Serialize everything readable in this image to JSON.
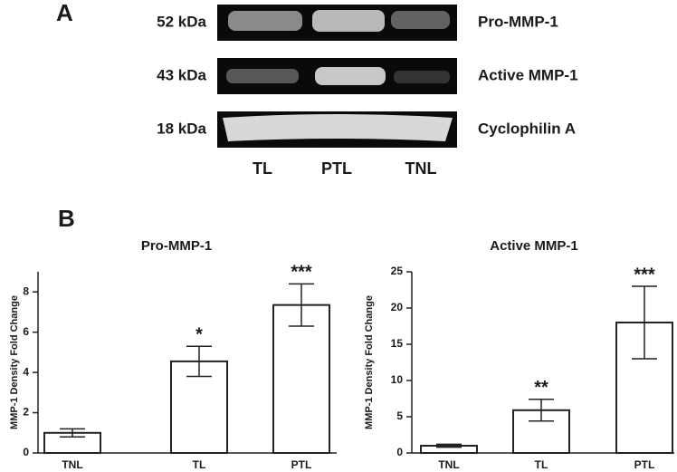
{
  "panel_a": {
    "label": "A",
    "rows": [
      {
        "size": "52 kDa",
        "protein": "Pro-MMP-1"
      },
      {
        "size": "43 kDa",
        "protein": "Active MMP-1"
      },
      {
        "size": "18 kDa",
        "protein": "Cyclophilin A"
      }
    ],
    "lanes": [
      "TL",
      "PTL",
      "TNL"
    ]
  },
  "panel_b": {
    "label": "B"
  },
  "chart_data": [
    {
      "type": "bar",
      "title": "Pro-MMP-1",
      "ylabel": "MMP-1 Density Fold Change",
      "categories": [
        "TNL",
        "TL",
        "PTL"
      ],
      "values": [
        1.0,
        4.55,
        7.35
      ],
      "errors": [
        0.2,
        0.75,
        1.05
      ],
      "annotations": [
        null,
        "*",
        "***"
      ],
      "color": "#ffffff",
      "ylim": [
        0,
        9
      ],
      "yticks": [
        0,
        2,
        4,
        6,
        8
      ]
    },
    {
      "type": "bar",
      "title": "Active MMP-1",
      "ylabel": "MMP-1 Density Fold Change",
      "categories": [
        "TNL",
        "TL",
        "PTL"
      ],
      "values": [
        1.0,
        5.9,
        18.0
      ],
      "errors": [
        0.2,
        1.5,
        5.0
      ],
      "annotations": [
        null,
        "**",
        "***"
      ],
      "color": "#ffffff",
      "ylim": [
        0,
        25
      ],
      "yticks": [
        0,
        5,
        10,
        15,
        20,
        25
      ]
    }
  ]
}
